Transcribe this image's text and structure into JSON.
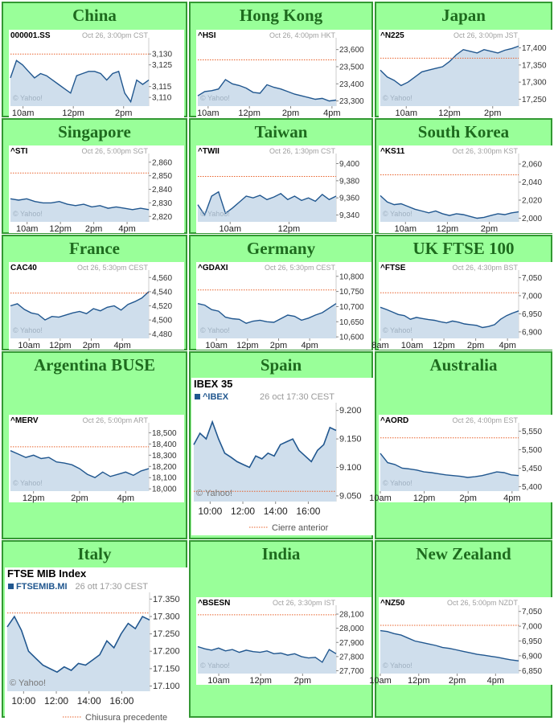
{
  "markets": [
    {
      "name": "China",
      "chart_data": {
        "type": "line",
        "symbol": "000001.SS",
        "timestamp": "Oct 26, 3:00pm CST",
        "watermark": "© Yahoo!",
        "ylim": [
          3106,
          3136
        ],
        "yticks": [
          3110,
          3115,
          3125,
          3130
        ],
        "ytick_labels": [
          "3,110",
          "3,115",
          "3,125",
          "3,130"
        ],
        "xlim": [
          9.5,
          15
        ],
        "xticks": [
          10,
          12,
          14
        ],
        "xtick_labels": [
          "10am",
          "12pm",
          "2pm"
        ],
        "prev_close": 3130,
        "values": [
          3119,
          3127,
          3125,
          3122,
          3119,
          3121,
          3120,
          3118,
          3116,
          3114,
          3112,
          3120,
          3121,
          3122,
          3122,
          3121,
          3118,
          3121,
          3122,
          3112,
          3108,
          3118,
          3116,
          3118
        ]
      }
    },
    {
      "name": "Hong Kong",
      "chart_data": {
        "type": "line",
        "symbol": "^HSI",
        "timestamp": "Oct 26, 4:00pm HKT",
        "watermark": "© Yahoo!",
        "ylim": [
          23270,
          23650
        ],
        "yticks": [
          23300,
          23400,
          23500,
          23600
        ],
        "ytick_labels": [
          "23,300",
          "23,400",
          "23,500",
          "23,600"
        ],
        "xlim": [
          9.5,
          16.2
        ],
        "xticks": [
          10,
          12,
          14,
          16
        ],
        "xtick_labels": [
          "10am",
          "12pm",
          "2pm",
          "4pm"
        ],
        "prev_close": 23540,
        "values": [
          23330,
          23355,
          23360,
          23370,
          23425,
          23400,
          23390,
          23375,
          23350,
          23345,
          23395,
          23380,
          23370,
          23355,
          23340,
          23330,
          23320,
          23310,
          23315,
          23300,
          23305
        ]
      }
    },
    {
      "name": "Japan",
      "chart_data": {
        "type": "line",
        "symbol": "^N225",
        "timestamp": "Oct 26, 3:00pm JST",
        "watermark": "© Yahoo!",
        "ylim": [
          17230,
          17420
        ],
        "yticks": [
          17250,
          17300,
          17350,
          17400
        ],
        "ytick_labels": [
          "17,250",
          "17,300",
          "17,350",
          "17,400"
        ],
        "xlim": [
          8.8,
          15.2
        ],
        "xticks": [
          10,
          12,
          14
        ],
        "xtick_labels": [
          "10am",
          "12pm",
          "2pm"
        ],
        "prev_close": 17370,
        "values": [
          17335,
          17315,
          17305,
          17290,
          17300,
          17315,
          17330,
          17335,
          17340,
          17345,
          17360,
          17380,
          17395,
          17390,
          17385,
          17395,
          17390,
          17385,
          17393,
          17398,
          17405
        ]
      }
    },
    {
      "name": "Singapore",
      "chart_data": {
        "type": "line",
        "symbol": "^STI",
        "timestamp": "Oct 26, 5:00pm SGT",
        "watermark": "© Yahoo!",
        "ylim": [
          2816,
          2864
        ],
        "yticks": [
          2820,
          2830,
          2840,
          2850,
          2860
        ],
        "ytick_labels": [
          "2,820",
          "2,830",
          "2,840",
          "2,850",
          "2,860"
        ],
        "xlim": [
          9,
          17.3
        ],
        "xticks": [
          10,
          12,
          14,
          16
        ],
        "xtick_labels": [
          "10am",
          "12pm",
          "2pm",
          "4pm"
        ],
        "prev_close": 2852,
        "values": [
          2833,
          2832,
          2833,
          2831,
          2830,
          2830,
          2831,
          2829,
          2828,
          2829,
          2827,
          2828,
          2826,
          2827,
          2826,
          2825,
          2826,
          2825
        ]
      }
    },
    {
      "name": "Taiwan",
      "chart_data": {
        "type": "line",
        "symbol": "^TWII",
        "timestamp": "Oct 26, 1:30pm CST",
        "watermark": "© Yahoo!",
        "ylim": [
          9332,
          9408
        ],
        "yticks": [
          9340,
          9360,
          9380,
          9400
        ],
        "ytick_labels": [
          "9,340",
          "9,360",
          "9,380",
          "9,400"
        ],
        "xlim": [
          8.9,
          13.6
        ],
        "xticks": [
          10,
          12
        ],
        "xtick_labels": [
          "10am",
          "12pm"
        ],
        "prev_close": 9385,
        "values": [
          9352,
          9340,
          9362,
          9367,
          9342,
          9348,
          9355,
          9362,
          9360,
          9363,
          9358,
          9361,
          9365,
          9358,
          9362,
          9357,
          9360,
          9356,
          9364,
          9358,
          9362
        ]
      }
    },
    {
      "name": "South Korea",
      "chart_data": {
        "type": "line",
        "symbol": "^KS11",
        "timestamp": "Oct 26, 3:00pm KST",
        "watermark": "© Yahoo!",
        "ylim": [
          1996,
          2068
        ],
        "yticks": [
          2000,
          2020,
          2040,
          2060
        ],
        "ytick_labels": [
          "2,000",
          "2,020",
          "2,040",
          "2,060"
        ],
        "xlim": [
          8.8,
          15.4
        ],
        "xticks": [
          10,
          12,
          14
        ],
        "xtick_labels": [
          "10am",
          "12pm",
          "2pm"
        ],
        "prev_close": 2048,
        "values": [
          2025,
          2018,
          2015,
          2016,
          2013,
          2010,
          2008,
          2006,
          2008,
          2005,
          2003,
          2005,
          2004,
          2002,
          2000,
          2001,
          2003,
          2005,
          2004,
          2006,
          2007
        ]
      }
    },
    {
      "name": "France",
      "chart_data": {
        "type": "line",
        "symbol": "CAC40",
        "timestamp": "Oct 26, 5:30pm CEST",
        "watermark": "© Yahoo!",
        "ylim": [
          4474,
          4566
        ],
        "yticks": [
          4480,
          4500,
          4520,
          4540,
          4560
        ],
        "ytick_labels": [
          "4,480",
          "4,500",
          "4,520",
          "4,540",
          "4,560"
        ],
        "xlim": [
          8.8,
          17.7
        ],
        "xticks": [
          10,
          12,
          14,
          16
        ],
        "xtick_labels": [
          "10am",
          "12pm",
          "2pm",
          "4pm"
        ],
        "prev_close": 4538,
        "values": [
          4520,
          4523,
          4515,
          4510,
          4508,
          4500,
          4505,
          4504,
          4507,
          4510,
          4512,
          4509,
          4516,
          4513,
          4518,
          4520,
          4514,
          4522,
          4526,
          4531,
          4540
        ]
      }
    },
    {
      "name": "Germany",
      "chart_data": {
        "type": "line",
        "symbol": "^GDAXI",
        "timestamp": "Oct 26, 5:30pm CEST",
        "watermark": "© Yahoo!",
        "ylim": [
          10595,
          10810
        ],
        "yticks": [
          10600,
          10650,
          10700,
          10750,
          10800
        ],
        "ytick_labels": [
          "10,600",
          "10,650",
          "10,700",
          "10,750",
          "10,800"
        ],
        "xlim": [
          8.8,
          17.7
        ],
        "xticks": [
          10,
          12,
          14,
          16
        ],
        "xtick_labels": [
          "10am",
          "12pm",
          "2pm",
          "4pm"
        ],
        "prev_close": 10755,
        "values": [
          10710,
          10705,
          10690,
          10685,
          10665,
          10660,
          10658,
          10645,
          10652,
          10655,
          10650,
          10648,
          10660,
          10672,
          10668,
          10655,
          10662,
          10672,
          10680,
          10695,
          10710
        ]
      }
    },
    {
      "name": "UK FTSE 100",
      "chart_data": {
        "type": "line",
        "symbol": "^FTSE",
        "timestamp": "Oct 26, 4:30pm BST",
        "watermark": "© Yahoo!",
        "ylim": [
          6882,
          7062
        ],
        "yticks": [
          6900,
          6950,
          7000,
          7050
        ],
        "ytick_labels": [
          "6,900",
          "6,950",
          "7,000",
          "7,050"
        ],
        "xlim": [
          8,
          16.7
        ],
        "xticks": [
          8,
          10,
          12,
          14,
          16
        ],
        "xtick_labels": [
          "8am",
          "10am",
          "12pm",
          "2pm",
          "4pm"
        ],
        "prev_close": 7008,
        "values": [
          6968,
          6962,
          6955,
          6948,
          6945,
          6935,
          6940,
          6937,
          6934,
          6932,
          6928,
          6925,
          6930,
          6927,
          6922,
          6920,
          6918,
          6912,
          6915,
          6920,
          6935,
          6945,
          6952,
          6958
        ]
      }
    },
    {
      "name": "Argentina BUSE",
      "chart_data": {
        "type": "line",
        "symbol": "^MERV",
        "timestamp": "Oct 26, 5:00pm ART",
        "watermark": "© Yahoo!",
        "ylim": [
          17980,
          18560
        ],
        "yticks": [
          18000,
          18100,
          18200,
          18300,
          18400,
          18500
        ],
        "ytick_labels": [
          "18,000",
          "18,100",
          "18,200",
          "18,300",
          "18,400",
          "18,500"
        ],
        "xlim": [
          11,
          17
        ],
        "xticks": [
          12,
          14,
          16
        ],
        "xtick_labels": [
          "12pm",
          "2pm",
          "4pm"
        ],
        "prev_close": 18375,
        "values": [
          18340,
          18310,
          18280,
          18300,
          18270,
          18280,
          18240,
          18230,
          18215,
          18180,
          18130,
          18100,
          18150,
          18110,
          18130,
          18150,
          18120,
          18160,
          18180
        ]
      }
    },
    {
      "name": "Spain",
      "chart_data": {
        "type": "line",
        "style": "alt",
        "header": "IBEX 35",
        "symbol": "^IBEX",
        "timestamp": "26 oct 17:30 CEST",
        "watermark": "© Yahoo!",
        "legend": "Cierre anterior",
        "ylim": [
          9040,
          9208
        ],
        "yticks": [
          9050,
          9100,
          9150,
          9200
        ],
        "ytick_labels": [
          "9.050",
          "9.100",
          "9.150",
          "9.200"
        ],
        "xlim": [
          9,
          17.7
        ],
        "xticks": [
          10,
          12,
          14,
          16
        ],
        "xtick_labels": [
          "10:00",
          "12:00",
          "14:00",
          "16:00"
        ],
        "prev_close": 9058,
        "values": [
          9140,
          9160,
          9150,
          9180,
          9150,
          9125,
          9118,
          9110,
          9105,
          9100,
          9120,
          9115,
          9125,
          9120,
          9140,
          9145,
          9150,
          9130,
          9120,
          9110,
          9130,
          9140,
          9170,
          9165
        ]
      }
    },
    {
      "name": "Australia",
      "chart_data": {
        "type": "line",
        "symbol": "^AORD",
        "timestamp": "Oct 26, 4:00pm EST",
        "watermark": "© Yahoo!",
        "ylim": [
          5388,
          5564
        ],
        "yticks": [
          5400,
          5450,
          5500,
          5550
        ],
        "ytick_labels": [
          "5,400",
          "5,450",
          "5,500",
          "5,550"
        ],
        "xlim": [
          10,
          16.3
        ],
        "xticks": [
          10,
          12,
          14,
          16
        ],
        "xtick_labels": [
          "10am",
          "12pm",
          "2pm",
          "4pm"
        ],
        "prev_close": 5532,
        "values": [
          5490,
          5465,
          5460,
          5450,
          5448,
          5445,
          5440,
          5438,
          5435,
          5432,
          5430,
          5428,
          5425,
          5427,
          5430,
          5435,
          5440,
          5438,
          5432,
          5430
        ]
      }
    },
    {
      "name": "Italy",
      "chart_data": {
        "type": "line",
        "style": "alt",
        "header": "FTSE MIB Index",
        "symbol": "FTSEMIB.MI",
        "timestamp": "26 ott 17:30 CEST",
        "watermark": "© Yahoo!",
        "legend": "Chiusura precedente",
        "ylim": [
          17085,
          17360
        ],
        "yticks": [
          17100,
          17150,
          17200,
          17250,
          17300,
          17350
        ],
        "ytick_labels": [
          "17.100",
          "17.150",
          "17.200",
          "17.250",
          "17.300",
          "17.350"
        ],
        "xlim": [
          9,
          17.7
        ],
        "xticks": [
          10,
          12,
          14,
          16
        ],
        "xtick_labels": [
          "10:00",
          "12:00",
          "14:00",
          "16:00"
        ],
        "prev_close": 17310,
        "values": [
          17270,
          17300,
          17260,
          17200,
          17180,
          17160,
          17150,
          17140,
          17155,
          17145,
          17165,
          17160,
          17175,
          17190,
          17230,
          17210,
          17250,
          17280,
          17265,
          17300,
          17290
        ]
      }
    },
    {
      "name": "India",
      "chart_data": {
        "type": "line",
        "symbol": "^BSESN",
        "timestamp": "Oct 26, 3:30pm IST",
        "watermark": "© Yahoo!",
        "ylim": [
          27680,
          28140
        ],
        "yticks": [
          27700,
          27800,
          27900,
          28000,
          28100
        ],
        "ytick_labels": [
          "27,700",
          "27,800",
          "27,900",
          "28,000",
          "28,100"
        ],
        "xlim": [
          9,
          15.6
        ],
        "xticks": [
          10,
          12,
          14
        ],
        "xtick_labels": [
          "10am",
          "12pm",
          "2pm"
        ],
        "prev_close": 28095,
        "values": [
          27870,
          27855,
          27845,
          27860,
          27840,
          27850,
          27830,
          27845,
          27835,
          27830,
          27840,
          27820,
          27825,
          27810,
          27820,
          27800,
          27790,
          27795,
          27760,
          27850,
          27820
        ]
      }
    },
    {
      "name": "New Zealand",
      "chart_data": {
        "type": "line",
        "symbol": "^NZ50",
        "timestamp": "Oct 26, 5:00pm NZDT",
        "watermark": "© Yahoo!",
        "ylim": [
          6840,
          7060
        ],
        "yticks": [
          6850,
          6900,
          6950,
          7000,
          7050
        ],
        "ytick_labels": [
          "6,850",
          "6,900",
          "6,950",
          "7,000",
          "7,050"
        ],
        "xlim": [
          10,
          17.2
        ],
        "xticks": [
          10,
          12,
          14,
          16
        ],
        "xtick_labels": [
          "10am",
          "12pm",
          "2pm",
          "4pm"
        ],
        "prev_close": 7003,
        "values": [
          6985,
          6982,
          6975,
          6970,
          6960,
          6950,
          6945,
          6940,
          6935,
          6928,
          6925,
          6920,
          6915,
          6910,
          6905,
          6902,
          6898,
          6895,
          6890,
          6886,
          6883
        ]
      }
    }
  ]
}
